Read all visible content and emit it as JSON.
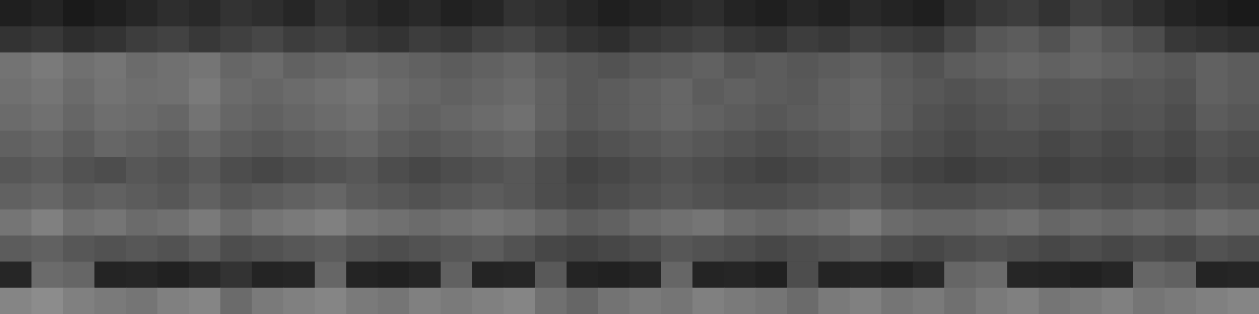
{
  "chart_data": {
    "type": "heatmap",
    "tick_labels": false,
    "grid": false,
    "zlim": [
      0,
      1
    ],
    "cells": [
      [
        0.12,
        0.14,
        0.1,
        0.12,
        0.15,
        0.18,
        0.16,
        0.2,
        0.18,
        0.15,
        0.2,
        0.17,
        0.14,
        0.16,
        0.13,
        0.15,
        0.2,
        0.18,
        0.15,
        0.12,
        0.14,
        0.16,
        0.18,
        0.14,
        0.12,
        0.15,
        0.13,
        0.16,
        0.14,
        0.12,
        0.18,
        0.22,
        0.24,
        0.2,
        0.25,
        0.22,
        0.18,
        0.14,
        0.12,
        0.1
      ],
      [
        0.2,
        0.22,
        0.18,
        0.2,
        0.24,
        0.26,
        0.22,
        0.25,
        0.28,
        0.24,
        0.26,
        0.22,
        0.2,
        0.24,
        0.22,
        0.26,
        0.28,
        0.24,
        0.2,
        0.18,
        0.22,
        0.24,
        0.26,
        0.22,
        0.2,
        0.24,
        0.22,
        0.26,
        0.24,
        0.22,
        0.28,
        0.34,
        0.36,
        0.32,
        0.38,
        0.34,
        0.3,
        0.22,
        0.2,
        0.18
      ],
      [
        0.45,
        0.48,
        0.44,
        0.46,
        0.42,
        0.44,
        0.46,
        0.4,
        0.42,
        0.38,
        0.4,
        0.42,
        0.4,
        0.38,
        0.36,
        0.38,
        0.4,
        0.36,
        0.34,
        0.32,
        0.35,
        0.36,
        0.38,
        0.34,
        0.36,
        0.34,
        0.36,
        0.38,
        0.35,
        0.32,
        0.36,
        0.38,
        0.4,
        0.38,
        0.4,
        0.38,
        0.36,
        0.34,
        0.38,
        0.36
      ],
      [
        0.44,
        0.46,
        0.42,
        0.45,
        0.43,
        0.44,
        0.48,
        0.42,
        0.4,
        0.42,
        0.44,
        0.46,
        0.42,
        0.4,
        0.38,
        0.4,
        0.42,
        0.38,
        0.34,
        0.36,
        0.38,
        0.4,
        0.36,
        0.38,
        0.36,
        0.35,
        0.38,
        0.4,
        0.36,
        0.34,
        0.32,
        0.34,
        0.36,
        0.34,
        0.35,
        0.33,
        0.34,
        0.32,
        0.38,
        0.36
      ],
      [
        0.42,
        0.44,
        0.4,
        0.43,
        0.42,
        0.4,
        0.45,
        0.4,
        0.38,
        0.4,
        0.42,
        0.44,
        0.4,
        0.38,
        0.4,
        0.42,
        0.44,
        0.38,
        0.34,
        0.36,
        0.38,
        0.4,
        0.38,
        0.36,
        0.34,
        0.36,
        0.38,
        0.4,
        0.36,
        0.32,
        0.3,
        0.32,
        0.34,
        0.32,
        0.34,
        0.32,
        0.33,
        0.3,
        0.36,
        0.34
      ],
      [
        0.38,
        0.4,
        0.36,
        0.4,
        0.38,
        0.36,
        0.4,
        0.36,
        0.34,
        0.36,
        0.38,
        0.4,
        0.36,
        0.34,
        0.36,
        0.38,
        0.4,
        0.34,
        0.3,
        0.32,
        0.34,
        0.36,
        0.34,
        0.32,
        0.3,
        0.32,
        0.34,
        0.36,
        0.32,
        0.3,
        0.28,
        0.3,
        0.3,
        0.28,
        0.3,
        0.28,
        0.3,
        0.28,
        0.32,
        0.3
      ],
      [
        0.34,
        0.36,
        0.32,
        0.3,
        0.34,
        0.32,
        0.35,
        0.3,
        0.28,
        0.3,
        0.32,
        0.34,
        0.3,
        0.28,
        0.3,
        0.32,
        0.34,
        0.3,
        0.26,
        0.28,
        0.3,
        0.32,
        0.3,
        0.28,
        0.26,
        0.28,
        0.3,
        0.32,
        0.28,
        0.26,
        0.24,
        0.26,
        0.27,
        0.25,
        0.27,
        0.26,
        0.27,
        0.25,
        0.3,
        0.28
      ],
      [
        0.38,
        0.4,
        0.36,
        0.38,
        0.36,
        0.34,
        0.38,
        0.34,
        0.36,
        0.38,
        0.4,
        0.36,
        0.34,
        0.32,
        0.34,
        0.36,
        0.34,
        0.3,
        0.28,
        0.3,
        0.32,
        0.34,
        0.32,
        0.3,
        0.3,
        0.32,
        0.34,
        0.36,
        0.32,
        0.3,
        0.3,
        0.32,
        0.33,
        0.3,
        0.32,
        0.3,
        0.32,
        0.3,
        0.34,
        0.32
      ],
      [
        0.46,
        0.5,
        0.44,
        0.46,
        0.42,
        0.44,
        0.48,
        0.42,
        0.46,
        0.48,
        0.5,
        0.46,
        0.44,
        0.42,
        0.44,
        0.46,
        0.44,
        0.4,
        0.36,
        0.38,
        0.42,
        0.44,
        0.46,
        0.42,
        0.4,
        0.42,
        0.44,
        0.48,
        0.42,
        0.4,
        0.4,
        0.42,
        0.44,
        0.4,
        0.42,
        0.4,
        0.42,
        0.4,
        0.44,
        0.42
      ],
      [
        0.36,
        0.38,
        0.34,
        0.32,
        0.34,
        0.32,
        0.36,
        0.3,
        0.32,
        0.34,
        0.36,
        0.32,
        0.3,
        0.32,
        0.34,
        0.36,
        0.32,
        0.28,
        0.26,
        0.28,
        0.3,
        0.34,
        0.32,
        0.3,
        0.28,
        0.3,
        0.32,
        0.34,
        0.3,
        0.28,
        0.3,
        0.32,
        0.3,
        0.28,
        0.3,
        0.28,
        0.3,
        0.28,
        0.32,
        0.3
      ],
      [
        0.15,
        0.42,
        0.4,
        0.14,
        0.15,
        0.13,
        0.16,
        0.2,
        0.14,
        0.15,
        0.4,
        0.14,
        0.13,
        0.15,
        0.38,
        0.14,
        0.15,
        0.35,
        0.14,
        0.13,
        0.15,
        0.4,
        0.14,
        0.15,
        0.13,
        0.3,
        0.14,
        0.15,
        0.13,
        0.16,
        0.4,
        0.42,
        0.15,
        0.14,
        0.13,
        0.15,
        0.4,
        0.38,
        0.14,
        0.15
      ],
      [
        0.52,
        0.55,
        0.5,
        0.48,
        0.46,
        0.5,
        0.52,
        0.42,
        0.48,
        0.5,
        0.52,
        0.48,
        0.46,
        0.5,
        0.48,
        0.5,
        0.52,
        0.44,
        0.4,
        0.45,
        0.48,
        0.46,
        0.5,
        0.48,
        0.46,
        0.42,
        0.48,
        0.5,
        0.46,
        0.48,
        0.44,
        0.48,
        0.5,
        0.46,
        0.48,
        0.5,
        0.46,
        0.48,
        0.5,
        0.52
      ]
    ]
  }
}
